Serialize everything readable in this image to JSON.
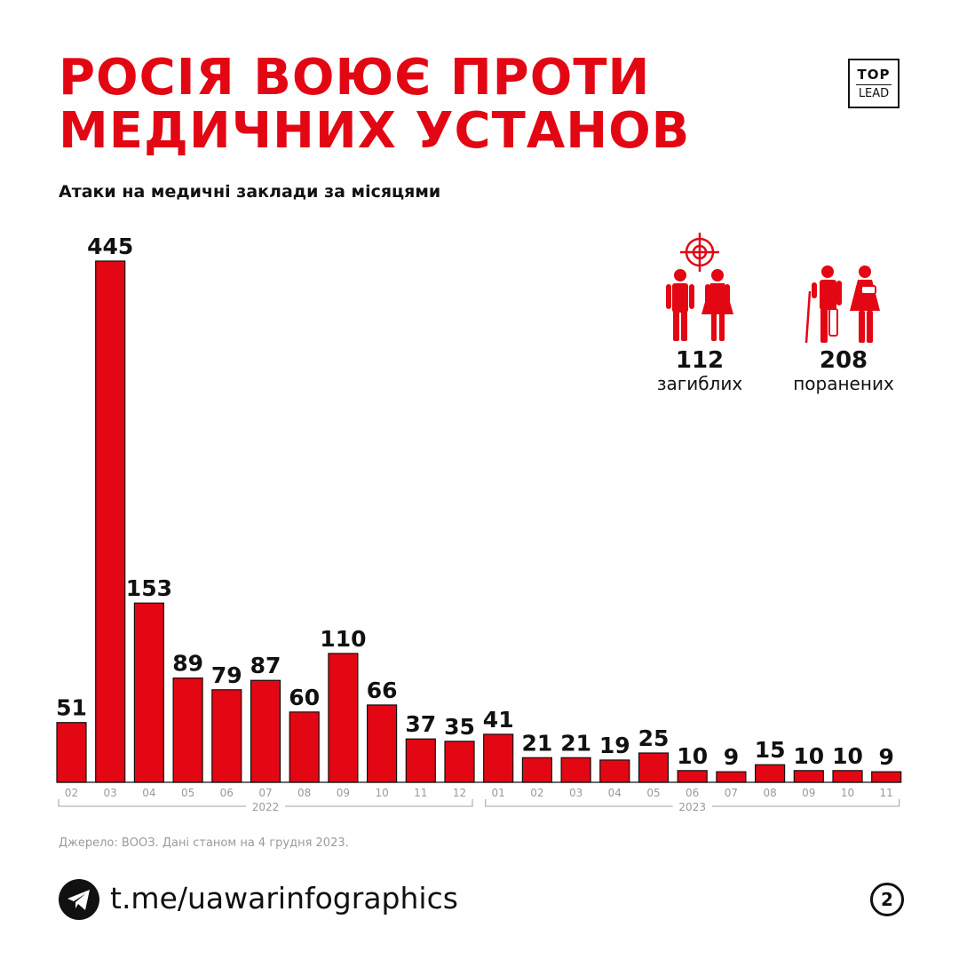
{
  "header": {
    "title_line1": "РОСІЯ ВОЮЄ ПРОТИ",
    "title_line2": "МЕДИЧНИХ УСТАНОВ",
    "subtitle": "Атаки на медичні заклади за місяцями"
  },
  "logo": {
    "line1": "TOP",
    "line2": "LEAD"
  },
  "stats": {
    "killed": {
      "value": "112",
      "label": "загиблих"
    },
    "injured": {
      "value": "208",
      "label": "поранених"
    }
  },
  "chart_data": {
    "type": "bar",
    "title": "Атаки на медичні заклади за місяцями",
    "categories": [
      "02",
      "03",
      "04",
      "05",
      "06",
      "07",
      "08",
      "09",
      "10",
      "11",
      "12",
      "01",
      "02",
      "03",
      "04",
      "05",
      "06",
      "07",
      "08",
      "09",
      "10",
      "11"
    ],
    "values": [
      51,
      445,
      153,
      89,
      79,
      87,
      60,
      110,
      66,
      37,
      35,
      41,
      21,
      21,
      19,
      25,
      10,
      9,
      15,
      10,
      10,
      9
    ],
    "groups": [
      {
        "label": "2022",
        "start": 0,
        "end": 10
      },
      {
        "label": "2023",
        "start": 11,
        "end": 21
      }
    ],
    "bar_color": "#e30613",
    "xlabel": "",
    "ylabel": ""
  },
  "source": "Джерело: ВООЗ. Дані станом на 4 грудня 2023.",
  "footer": {
    "link": "t.me/uawarinfographics",
    "page": "2"
  },
  "colors": {
    "accent": "#e30613",
    "text": "#111111",
    "muted": "#9a9a9a"
  }
}
